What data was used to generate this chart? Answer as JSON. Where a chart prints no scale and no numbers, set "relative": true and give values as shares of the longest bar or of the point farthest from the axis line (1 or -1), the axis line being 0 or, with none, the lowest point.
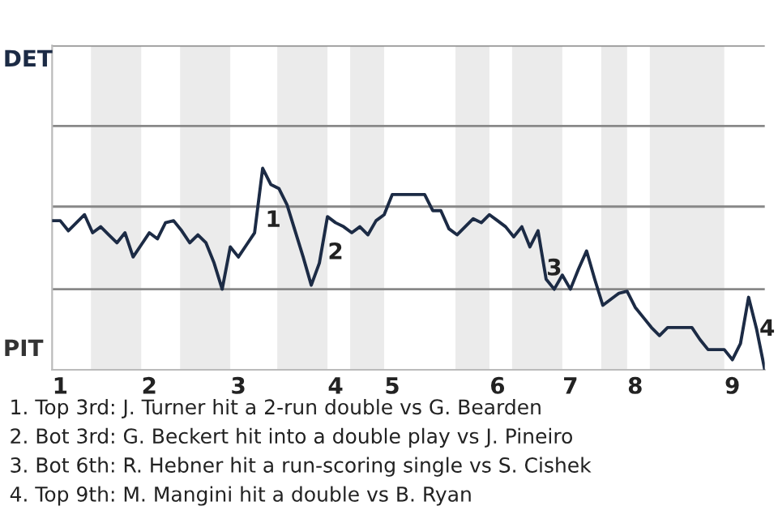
{
  "chart_data": {
    "type": "line",
    "relative": true,
    "categories": [
      null,
      "1",
      null,
      null,
      null,
      null,
      null,
      null,
      null,
      null,
      null,
      null,
      "2",
      null,
      null,
      null,
      null,
      null,
      null,
      null,
      null,
      null,
      null,
      "3",
      null,
      null,
      null,
      null,
      null,
      null,
      null,
      null,
      null,
      null,
      null,
      "4",
      null,
      null,
      null,
      null,
      null,
      null,
      "5",
      null,
      null,
      null,
      null,
      null,
      null,
      null,
      null,
      null,
      null,
      null,
      null,
      "6",
      null,
      null,
      null,
      null,
      null,
      null,
      null,
      null,
      "7",
      null,
      null,
      null,
      null,
      null,
      null,
      null,
      "8",
      null,
      null,
      null,
      null,
      null,
      null,
      null,
      null,
      null,
      null,
      null,
      "9",
      null,
      null,
      null,
      null
    ],
    "series": [
      {
        "color": "#1c2b45",
        "values": [
          0.74,
          0.74,
          0.69,
          0.73,
          0.77,
          0.68,
          0.71,
          0.67,
          0.63,
          0.68,
          0.56,
          0.62,
          0.68,
          0.65,
          0.73,
          0.74,
          0.69,
          0.63,
          0.67,
          0.63,
          0.53,
          0.4,
          0.61,
          0.56,
          0.62,
          0.68,
          1,
          0.92,
          0.9,
          0.82,
          0.69,
          0.56,
          0.42,
          0.53,
          0.76,
          0.73,
          0.71,
          0.68,
          0.71,
          0.67,
          0.74,
          0.77,
          0.87,
          0.87,
          0.87,
          0.87,
          0.87,
          0.79,
          0.79,
          0.7,
          0.67,
          0.71,
          0.75,
          0.73,
          0.77,
          0.74,
          0.71,
          0.66,
          0.71,
          0.61,
          0.69,
          0.45,
          0.4,
          0.47,
          0.4,
          0.5,
          0.59,
          0.45,
          0.32,
          0.35,
          0.38,
          0.39,
          0.31,
          0.26,
          0.21,
          0.17,
          0.21,
          0.21,
          0.21,
          0.21,
          0.15,
          0.1,
          0.1,
          0.1,
          0.05,
          0.13,
          0.36,
          0.2,
          0
        ]
      }
    ],
    "ref_lines": [
      {
        "axis": "y",
        "value": 0.4,
        "color": "#888888"
      },
      {
        "axis": "y",
        "value": 0.81,
        "color": "#888888"
      },
      {
        "axis": "y",
        "value": 1.21,
        "color": "#888888"
      },
      {
        "axis": "y",
        "value": 1.61,
        "color": "#888888"
      }
    ],
    "legend": false,
    "marker": "none",
    "line_style": "solid",
    "annotations": [
      "DET",
      "PIT",
      "1",
      "2",
      "3",
      "4",
      "1. Top 3rd: J. Turner hit a 2-run double vs G. Bearden",
      "2. Bot 3rd: G. Beckert hit into a double play vs J. Pineiro",
      "3. Bot 6th: R. Hebner hit a run-scoring single vs S. Cishek",
      "4. Top 9th: M. Mangini hit a double vs B. Ryan"
    ]
  }
}
